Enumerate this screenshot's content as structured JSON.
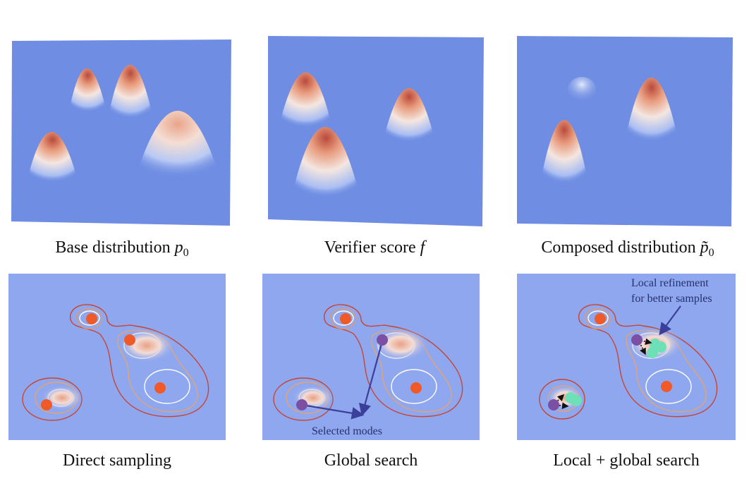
{
  "top_panels": [
    {
      "caption_text": "Base distribution ",
      "math": "p",
      "math_sub": "0"
    },
    {
      "caption_text": "Verifier score ",
      "math": "f",
      "math_sub": ""
    },
    {
      "caption_text": "Composed distribution ",
      "math": "p̃",
      "math_sub": "0"
    }
  ],
  "bottom_panels": [
    {
      "caption": "Direct sampling"
    },
    {
      "caption": "Global search",
      "annotation": "Selected modes"
    },
    {
      "caption": "Local + global search",
      "annotation_line1": "Local refinement",
      "annotation_line2": "for better samples"
    }
  ],
  "colors": {
    "background_blue": "#6f8de2",
    "contour_bg": "#8ea7ef",
    "peak_red": "#c0392b",
    "sample_orange": "#f05a28",
    "selected_purple": "#7b4fa3",
    "refined_teal": "#6ee0b8",
    "arrow_navy": "#3b3f9a"
  }
}
